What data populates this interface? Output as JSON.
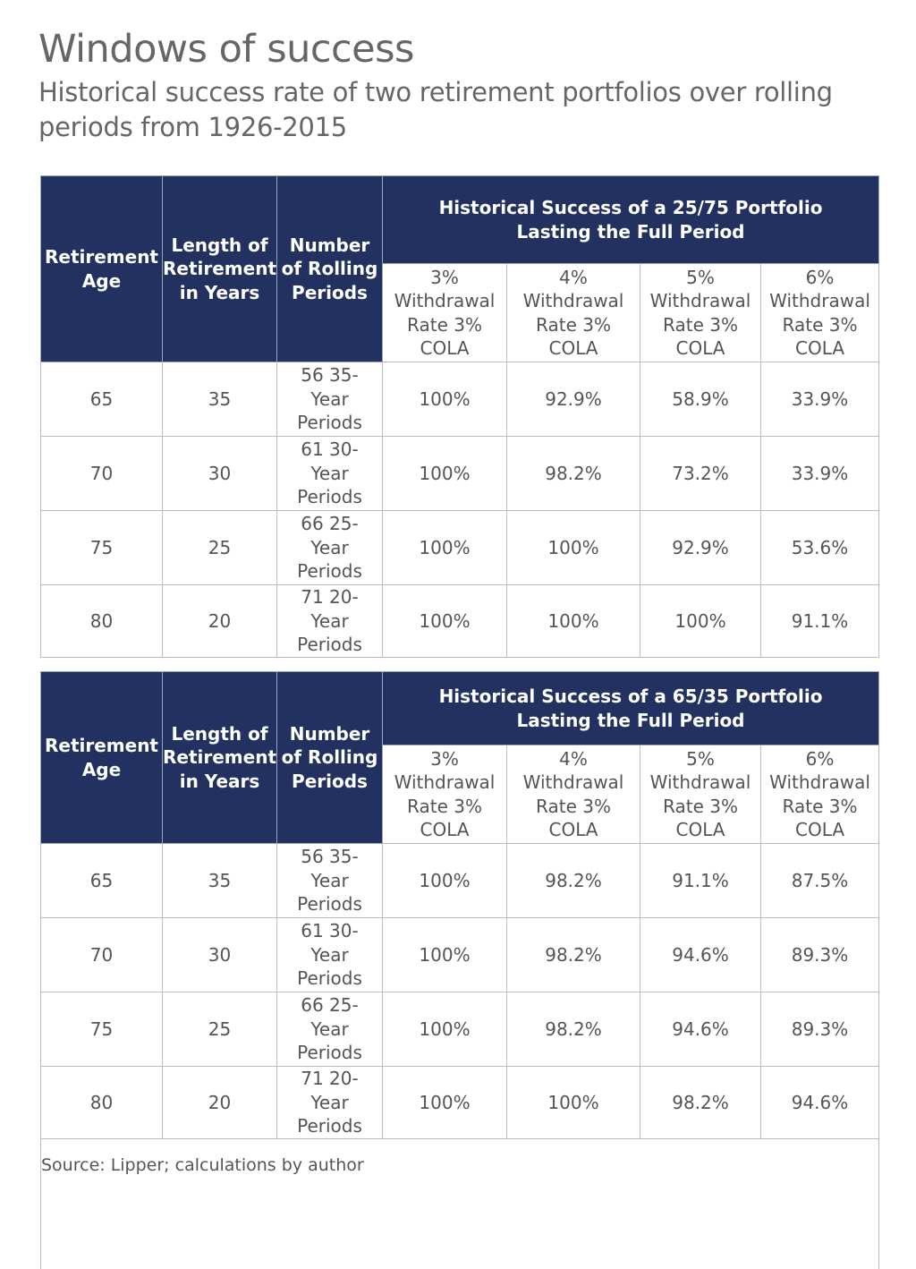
{
  "title": "Windows of success",
  "subtitle": "Historical success rate of two retirement portfolios over rolling periods from 1926-2015",
  "colors": {
    "header_bg": "#22315f",
    "header_text": "#ffffff",
    "body_text": "#555555",
    "grid": "#bdbdbd"
  },
  "chart_data": {
    "type": "table",
    "columns": [
      "Retirement Age",
      "Length of Retirement in Years",
      "Number of Rolling Periods"
    ],
    "rate_columns": [
      "3% Withdrawal Rate 3% COLA",
      "4% Withdrawal Rate 3% COLA",
      "5% Withdrawal Rate 3% COLA",
      "6% Withdrawal Rate 3% COLA"
    ],
    "tables": [
      {
        "group_header": "Historical Success of a 25/75 Portfolio Lasting the Full Period",
        "rows": [
          [
            "65",
            "35",
            "56 35-Year Periods",
            "100%",
            "92.9%",
            "58.9%",
            "33.9%"
          ],
          [
            "70",
            "30",
            "61 30-Year Periods",
            "100%",
            "98.2%",
            "73.2%",
            "33.9%"
          ],
          [
            "75",
            "25",
            "66 25-Year Periods",
            "100%",
            "100%",
            "92.9%",
            "53.6%"
          ],
          [
            "80",
            "20",
            "71 20-Year Periods",
            "100%",
            "100%",
            "100%",
            "91.1%"
          ]
        ]
      },
      {
        "group_header": "Historical Success of a 65/35 Portfolio Lasting the Full Period",
        "rows": [
          [
            "65",
            "35",
            "56 35-Year Periods",
            "100%",
            "98.2%",
            "91.1%",
            "87.5%"
          ],
          [
            "70",
            "30",
            "61 30-Year Periods",
            "100%",
            "98.2%",
            "94.6%",
            "89.3%"
          ],
          [
            "75",
            "25",
            "66 25-Year Periods",
            "100%",
            "98.2%",
            "94.6%",
            "89.3%"
          ],
          [
            "80",
            "20",
            "71 20-Year Periods",
            "100%",
            "100%",
            "98.2%",
            "94.6%"
          ]
        ]
      }
    ]
  },
  "source": "Source:  Lipper; calculations by author"
}
